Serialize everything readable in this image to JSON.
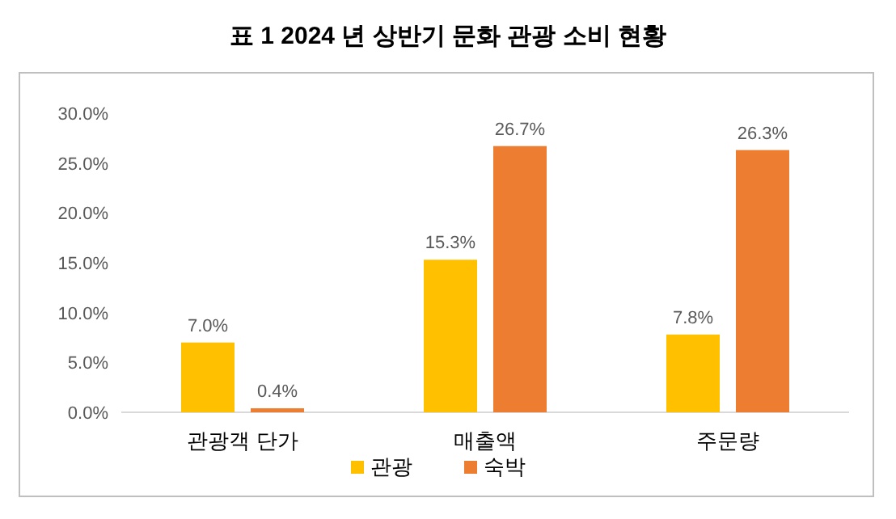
{
  "chart_data": {
    "type": "bar",
    "title": "표 1 2024 년 상반기 문화 관광 소비 현황",
    "categories": [
      "관광객 단가",
      "매출액",
      "주문량"
    ],
    "series": [
      {
        "name": "관광",
        "color": "#ffc000",
        "values": [
          7.0,
          15.3,
          7.8
        ],
        "value_labels": [
          "7.0%",
          "15.3%",
          "7.8%"
        ]
      },
      {
        "name": "숙박",
        "color": "#ed7d31",
        "values": [
          0.4,
          26.7,
          26.3
        ],
        "value_labels": [
          "0.4%",
          "26.7%",
          "26.3%"
        ]
      }
    ],
    "ylim": [
      0,
      30
    ],
    "yticks": [
      {
        "value": 0,
        "label": "0.0%"
      },
      {
        "value": 5,
        "label": "5.0%"
      },
      {
        "value": 10,
        "label": "10.0%"
      },
      {
        "value": 15,
        "label": "15.0%"
      },
      {
        "value": 20,
        "label": "20.0%"
      },
      {
        "value": 25,
        "label": "25.0%"
      },
      {
        "value": 30,
        "label": "30.0%"
      }
    ],
    "legend": "bottom"
  }
}
